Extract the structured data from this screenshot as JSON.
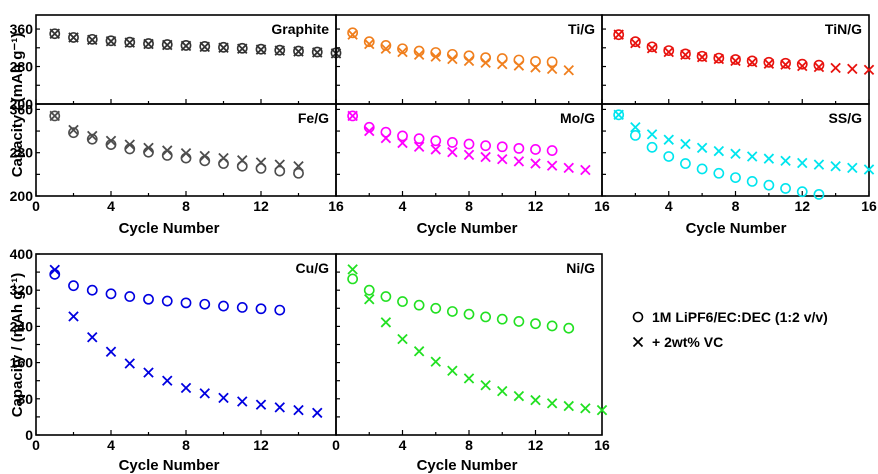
{
  "figure": {
    "top_ylabel": "Capacity / (mAh g⁻¹)",
    "bottom_ylabel": "Capacity / (mAh g⁻¹)",
    "xlabel": "Cycle Number"
  },
  "legend": {
    "entries": [
      {
        "marker": "circle",
        "label": "1M LiPF6/EC:DEC (1:2 v/v)"
      },
      {
        "marker": "cross",
        "label": "+ 2wt% VC"
      }
    ]
  },
  "chart_data": [
    {
      "type": "scatter",
      "panel": "Graphite",
      "color": "#333333",
      "xlim": [
        0,
        16
      ],
      "ylim": [
        200,
        390
      ],
      "xticks": [],
      "yticks": [
        200,
        280,
        360
      ],
      "series": [
        {
          "name": "1M LiPF6/EC:DEC (1:2 v/v)",
          "marker": "circle",
          "x": [
            1,
            2,
            3,
            4,
            5,
            6,
            7,
            8,
            9,
            10,
            11,
            12,
            13,
            14,
            15,
            16
          ],
          "y": [
            350,
            342,
            338,
            335,
            332,
            329,
            327,
            325,
            323,
            321,
            319,
            317,
            315,
            313,
            311,
            309
          ]
        },
        {
          "name": "+ 2wt% VC",
          "marker": "cross",
          "x": [
            1,
            2,
            3,
            4,
            5,
            6,
            7,
            8,
            9,
            10,
            11,
            12,
            13,
            14,
            15,
            16
          ],
          "y": [
            350,
            342,
            337,
            334,
            331,
            328,
            326,
            324,
            322,
            320,
            318,
            316,
            314,
            312,
            310,
            308
          ]
        }
      ]
    },
    {
      "type": "scatter",
      "panel": "Ti/G",
      "color": "#F07F1E",
      "xlim": [
        0,
        16
      ],
      "ylim": [
        200,
        390
      ],
      "xticks": [],
      "yticks": [],
      "series": [
        {
          "name": "1M LiPF6/EC:DEC (1:2 v/v)",
          "marker": "circle",
          "x": [
            1,
            2,
            3,
            4,
            5,
            6,
            7,
            8,
            9,
            10,
            11,
            12,
            13
          ],
          "y": [
            352,
            333,
            325,
            318,
            313,
            310,
            306,
            303,
            299,
            297,
            294,
            291,
            290
          ]
        },
        {
          "name": "+ 2wt% VC",
          "marker": "cross",
          "x": [
            1,
            2,
            3,
            4,
            5,
            6,
            7,
            8,
            9,
            10,
            11,
            12,
            13,
            14
          ],
          "y": [
            348,
            328,
            318,
            311,
            305,
            301,
            296,
            292,
            288,
            285,
            282,
            278,
            275,
            272
          ]
        }
      ]
    },
    {
      "type": "scatter",
      "panel": "TiN/G",
      "color": "#E8120E",
      "xlim": [
        0,
        16
      ],
      "ylim": [
        200,
        390
      ],
      "xticks": [],
      "yticks": [],
      "series": [
        {
          "name": "1M LiPF6/EC:DEC (1:2 v/v)",
          "marker": "circle",
          "x": [
            1,
            2,
            3,
            4,
            5,
            6,
            7,
            8,
            9,
            10,
            11,
            12,
            13
          ],
          "y": [
            348,
            333,
            322,
            314,
            307,
            302,
            298,
            295,
            292,
            289,
            287,
            285,
            283
          ]
        },
        {
          "name": "+ 2wt% VC",
          "marker": "cross",
          "x": [
            1,
            2,
            3,
            4,
            5,
            6,
            7,
            8,
            9,
            10,
            11,
            12,
            13,
            14,
            15,
            16
          ],
          "y": [
            348,
            330,
            319,
            311,
            305,
            300,
            296,
            292,
            289,
            286,
            284,
            281,
            279,
            277,
            275,
            273
          ]
        }
      ]
    },
    {
      "type": "scatter",
      "panel": "Fe/G",
      "color": "#4D4D4D",
      "xlim": [
        0,
        16
      ],
      "ylim": [
        200,
        370
      ],
      "xticks": [
        0,
        4,
        8,
        12,
        16
      ],
      "yticks": [
        200,
        280,
        360
      ],
      "series": [
        {
          "name": "1M LiPF6/EC:DEC (1:2 v/v)",
          "marker": "circle",
          "x": [
            1,
            2,
            3,
            4,
            5,
            6,
            7,
            8,
            9,
            10,
            11,
            12,
            13,
            14
          ],
          "y": [
            348,
            317,
            305,
            295,
            287,
            281,
            275,
            270,
            265,
            260,
            255,
            251,
            246,
            242
          ]
        },
        {
          "name": "+ 2wt% VC",
          "marker": "cross",
          "x": [
            1,
            2,
            3,
            4,
            5,
            6,
            7,
            8,
            9,
            10,
            11,
            12,
            13,
            14
          ],
          "y": [
            348,
            322,
            311,
            302,
            295,
            289,
            284,
            279,
            274,
            270,
            266,
            262,
            258,
            255
          ]
        }
      ]
    },
    {
      "type": "scatter",
      "panel": "Mo/G",
      "color": "#FF00FF",
      "xlim": [
        0,
        16
      ],
      "ylim": [
        200,
        370
      ],
      "xticks": [
        4,
        8,
        12,
        16
      ],
      "yticks": [],
      "series": [
        {
          "name": "1M LiPF6/EC:DEC (1:2 v/v)",
          "marker": "circle",
          "x": [
            1,
            2,
            3,
            4,
            5,
            6,
            7,
            8,
            9,
            10,
            11,
            12,
            13
          ],
          "y": [
            348,
            327,
            318,
            311,
            306,
            302,
            299,
            296,
            293,
            291,
            288,
            286,
            284
          ]
        },
        {
          "name": "+ 2wt% VC",
          "marker": "cross",
          "x": [
            1,
            2,
            3,
            4,
            5,
            6,
            7,
            8,
            9,
            10,
            11,
            12,
            13,
            14,
            15
          ],
          "y": [
            348,
            320,
            307,
            298,
            291,
            286,
            281,
            276,
            272,
            268,
            264,
            260,
            256,
            252,
            248
          ]
        }
      ]
    },
    {
      "type": "scatter",
      "panel": "SS/G",
      "color": "#00E5EE",
      "xlim": [
        0,
        16
      ],
      "ylim": [
        200,
        370
      ],
      "xticks": [
        4,
        8,
        12,
        16
      ],
      "yticks": [],
      "series": [
        {
          "name": "1M LiPF6/EC:DEC (1:2 v/v)",
          "marker": "circle",
          "x": [
            1,
            2,
            3,
            4,
            5,
            6,
            7,
            8,
            9,
            10,
            11,
            12,
            13
          ],
          "y": [
            350,
            312,
            290,
            273,
            260,
            250,
            242,
            234,
            227,
            220,
            214,
            208,
            203
          ]
        },
        {
          "name": "+ 2wt% VC",
          "marker": "cross",
          "x": [
            1,
            2,
            3,
            4,
            5,
            6,
            7,
            8,
            9,
            10,
            11,
            12,
            13,
            14,
            15,
            16
          ],
          "y": [
            350,
            327,
            314,
            304,
            296,
            289,
            283,
            278,
            273,
            269,
            265,
            261,
            258,
            255,
            252,
            249
          ]
        }
      ]
    },
    {
      "type": "scatter",
      "panel": "Cu/G",
      "color": "#0000E0",
      "xlim": [
        0,
        16
      ],
      "ylim": [
        0,
        400
      ],
      "xticks": [
        0,
        4,
        8,
        12
      ],
      "yticks": [
        0,
        80,
        160,
        240,
        320,
        400
      ],
      "series": [
        {
          "name": "1M LiPF6/EC:DEC (1:2 v/v)",
          "marker": "circle",
          "x": [
            1,
            2,
            3,
            4,
            5,
            6,
            7,
            8,
            9,
            10,
            11,
            12,
            13
          ],
          "y": [
            355,
            330,
            320,
            312,
            306,
            300,
            296,
            292,
            289,
            285,
            282,
            279,
            276
          ]
        },
        {
          "name": "+ 2wt% VC",
          "marker": "cross",
          "x": [
            1,
            2,
            3,
            4,
            5,
            6,
            7,
            8,
            9,
            10,
            11,
            12,
            13,
            14,
            15
          ],
          "y": [
            365,
            262,
            216,
            184,
            158,
            138,
            120,
            104,
            92,
            82,
            74,
            67,
            61,
            55,
            49
          ]
        }
      ]
    },
    {
      "type": "scatter",
      "panel": "Ni/G",
      "color": "#22E022",
      "xlim": [
        0,
        16
      ],
      "ylim": [
        0,
        400
      ],
      "xticks": [
        0,
        4,
        8,
        12,
        16
      ],
      "yticks": [],
      "series": [
        {
          "name": "1M LiPF6/EC:DEC (1:2 v/v)",
          "marker": "circle",
          "x": [
            1,
            2,
            3,
            4,
            5,
            6,
            7,
            8,
            9,
            10,
            11,
            12,
            13,
            14
          ],
          "y": [
            345,
            320,
            306,
            295,
            287,
            280,
            273,
            267,
            261,
            256,
            251,
            246,
            241,
            236
          ]
        },
        {
          "name": "+ 2wt% VC",
          "marker": "cross",
          "x": [
            1,
            2,
            3,
            4,
            5,
            6,
            7,
            8,
            9,
            10,
            11,
            12,
            13,
            14,
            15,
            16
          ],
          "y": [
            366,
            300,
            249,
            212,
            185,
            162,
            142,
            125,
            110,
            97,
            86,
            77,
            70,
            64,
            59,
            55
          ]
        }
      ]
    }
  ]
}
